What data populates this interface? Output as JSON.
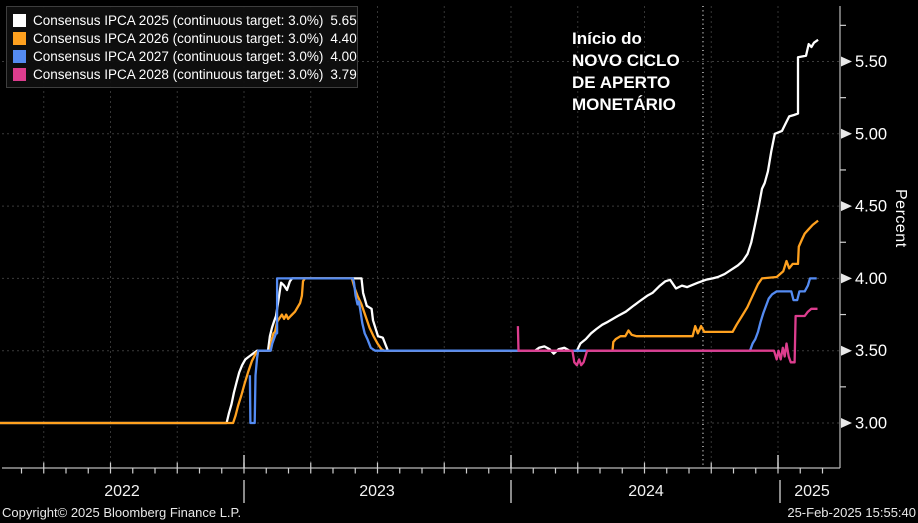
{
  "annotation": {
    "text": "Início do\nNOVO CICLO\nDE APERTO\nMONETÁRIO"
  },
  "footer": {
    "copyright": "Copyright© 2025 Bloomberg Finance L.P.",
    "timestamp": "25-Feb-2025 15:55:40"
  },
  "chart_data": {
    "type": "line",
    "title": "",
    "xlabel": "",
    "ylabel": "Percent",
    "grid": "dashed, both axes",
    "legend_position": "top-left",
    "x_axis": {
      "year_labels": [
        "2022",
        "2023",
        "2024",
        "2025"
      ],
      "minor_ticks": "monthly",
      "major_ticks": "quarterly"
    },
    "y_axis": {
      "ticks": [
        3.0,
        3.5,
        4.0,
        4.5,
        5.0,
        5.5
      ],
      "minor_step": 0.25,
      "range": [
        2.7,
        5.9
      ],
      "side": "right"
    },
    "event_line": {
      "t": 2024.719,
      "style": "dotted-white-vertical"
    },
    "series": [
      {
        "label": "Consensus IPCA 2025 (continuous target: 3.0%)",
        "value": "5.65",
        "color": "#ffffff",
        "points": [
          [
            2022.086,
            3.0
          ],
          [
            2022.935,
            3.0
          ],
          [
            2022.944,
            3.07
          ],
          [
            2022.953,
            3.13
          ],
          [
            2022.962,
            3.21
          ],
          [
            2022.972,
            3.28
          ],
          [
            2022.982,
            3.35
          ],
          [
            2022.993,
            3.4
          ],
          [
            2023.005,
            3.44
          ],
          [
            2023.019,
            3.46
          ],
          [
            2023.034,
            3.48
          ],
          [
            2023.049,
            3.5
          ],
          [
            2023.09,
            3.5
          ],
          [
            2023.097,
            3.6
          ],
          [
            2023.105,
            3.66
          ],
          [
            2023.112,
            3.7
          ],
          [
            2023.12,
            3.74
          ],
          [
            2023.124,
            3.79
          ],
          [
            2023.139,
            3.97
          ],
          [
            2023.15,
            3.95
          ],
          [
            2023.161,
            3.92
          ],
          [
            2023.172,
            3.98
          ],
          [
            2023.18,
            4.0
          ],
          [
            2023.44,
            4.0
          ],
          [
            2023.446,
            3.9
          ],
          [
            2023.46,
            3.81
          ],
          [
            2023.478,
            3.79
          ],
          [
            2023.483,
            3.71
          ],
          [
            2023.502,
            3.6
          ],
          [
            2023.52,
            3.59
          ],
          [
            2023.539,
            3.5
          ],
          [
            2024.09,
            3.5
          ],
          [
            2024.105,
            3.52
          ],
          [
            2024.125,
            3.53
          ],
          [
            2024.145,
            3.51
          ],
          [
            2024.16,
            3.48
          ],
          [
            2024.178,
            3.51
          ],
          [
            2024.2,
            3.52
          ],
          [
            2024.22,
            3.5
          ],
          [
            2024.247,
            3.5
          ],
          [
            2024.26,
            3.55
          ],
          [
            2024.28,
            3.58
          ],
          [
            2024.3,
            3.62
          ],
          [
            2024.32,
            3.65
          ],
          [
            2024.342,
            3.68
          ],
          [
            2024.363,
            3.7
          ],
          [
            2024.4,
            3.74
          ],
          [
            2024.43,
            3.77
          ],
          [
            2024.458,
            3.81
          ],
          [
            2024.48,
            3.84
          ],
          [
            2024.51,
            3.88
          ],
          [
            2024.53,
            3.9
          ],
          [
            2024.558,
            3.95
          ],
          [
            2024.578,
            3.98
          ],
          [
            2024.596,
            3.99
          ],
          [
            2024.618,
            3.93
          ],
          [
            2024.64,
            3.95
          ],
          [
            2024.66,
            3.94
          ],
          [
            2024.7,
            3.97
          ],
          [
            2024.73,
            3.99
          ],
          [
            2024.755,
            4.0
          ],
          [
            2024.775,
            4.01
          ],
          [
            2024.8,
            4.03
          ],
          [
            2024.825,
            4.06
          ],
          [
            2024.85,
            4.09
          ],
          [
            2024.868,
            4.12
          ],
          [
            2024.886,
            4.17
          ],
          [
            2024.9,
            4.25
          ],
          [
            2024.915,
            4.38
          ],
          [
            2024.928,
            4.5
          ],
          [
            2024.94,
            4.62
          ],
          [
            2024.95,
            4.66
          ],
          [
            2024.962,
            4.74
          ],
          [
            2024.975,
            4.88
          ],
          [
            2024.988,
            5.0
          ],
          [
            2025.015,
            5.02
          ],
          [
            2025.028,
            5.07
          ],
          [
            2025.042,
            5.12
          ],
          [
            2025.06,
            5.13
          ],
          [
            2025.075,
            5.14
          ],
          [
            2025.075,
            5.53
          ],
          [
            2025.105,
            5.54
          ],
          [
            2025.115,
            5.62
          ],
          [
            2025.125,
            5.6
          ],
          [
            2025.135,
            5.63
          ],
          [
            2025.15,
            5.65
          ]
        ]
      },
      {
        "label": "Consensus IPCA 2026 (continuous target: 3.0%)",
        "value": "4.40",
        "color": "#ffa11f",
        "points": [
          [
            2022.086,
            3.0
          ],
          [
            2022.959,
            3.0
          ],
          [
            2022.968,
            3.05
          ],
          [
            2022.978,
            3.12
          ],
          [
            2022.99,
            3.19
          ],
          [
            2023.002,
            3.27
          ],
          [
            2023.015,
            3.35
          ],
          [
            2023.03,
            3.43
          ],
          [
            2023.044,
            3.48
          ],
          [
            2023.055,
            3.5
          ],
          [
            2023.097,
            3.5
          ],
          [
            2023.103,
            3.57
          ],
          [
            2023.11,
            3.62
          ],
          [
            2023.116,
            3.63
          ],
          [
            2023.124,
            3.7
          ],
          [
            2023.142,
            3.75
          ],
          [
            2023.15,
            3.72
          ],
          [
            2023.158,
            3.75
          ],
          [
            2023.165,
            3.72
          ],
          [
            2023.175,
            3.74
          ],
          [
            2023.191,
            3.77
          ],
          [
            2023.21,
            3.83
          ],
          [
            2023.217,
            3.88
          ],
          [
            2023.221,
            3.98
          ],
          [
            2023.228,
            4.0
          ],
          [
            2023.404,
            4.0
          ],
          [
            2023.415,
            3.93
          ],
          [
            2023.425,
            3.88
          ],
          [
            2023.44,
            3.82
          ],
          [
            2023.455,
            3.74
          ],
          [
            2023.47,
            3.66
          ],
          [
            2023.485,
            3.6
          ],
          [
            2023.5,
            3.55
          ],
          [
            2023.515,
            3.51
          ],
          [
            2023.525,
            3.5
          ],
          [
            2024.38,
            3.5
          ],
          [
            2024.383,
            3.56
          ],
          [
            2024.392,
            3.58
          ],
          [
            2024.41,
            3.6
          ],
          [
            2024.428,
            3.6
          ],
          [
            2024.44,
            3.64
          ],
          [
            2024.452,
            3.61
          ],
          [
            2024.47,
            3.6
          ],
          [
            2024.68,
            3.6
          ],
          [
            2024.69,
            3.67
          ],
          [
            2024.7,
            3.62
          ],
          [
            2024.712,
            3.67
          ],
          [
            2024.724,
            3.63
          ],
          [
            2024.83,
            3.63
          ],
          [
            2024.845,
            3.68
          ],
          [
            2024.865,
            3.74
          ],
          [
            2024.885,
            3.8
          ],
          [
            2024.905,
            3.88
          ],
          [
            2024.925,
            3.96
          ],
          [
            2024.94,
            4.0
          ],
          [
            2024.995,
            4.01
          ],
          [
            2025.02,
            4.05
          ],
          [
            2025.032,
            4.12
          ],
          [
            2025.042,
            4.07
          ],
          [
            2025.055,
            4.1
          ],
          [
            2025.075,
            4.1
          ],
          [
            2025.078,
            4.22
          ],
          [
            2025.09,
            4.27
          ],
          [
            2025.1,
            4.31
          ],
          [
            2025.115,
            4.34
          ],
          [
            2025.13,
            4.37
          ],
          [
            2025.15,
            4.4
          ]
        ]
      },
      {
        "label": "Consensus IPCA 2027 (continuous target: 3.0%)",
        "value": "4.00",
        "color": "#548bf2",
        "points": [
          [
            2023.022,
            3.33
          ],
          [
            2023.024,
            3.0
          ],
          [
            2023.04,
            3.0
          ],
          [
            2023.043,
            3.33
          ],
          [
            2023.049,
            3.45
          ],
          [
            2023.053,
            3.5
          ],
          [
            2023.1,
            3.5
          ],
          [
            2023.106,
            3.55
          ],
          [
            2023.112,
            3.58
          ],
          [
            2023.12,
            3.62
          ],
          [
            2023.124,
            3.62
          ],
          [
            2023.124,
            4.0
          ],
          [
            2023.408,
            4.0
          ],
          [
            2023.412,
            3.97
          ],
          [
            2023.418,
            3.88
          ],
          [
            2023.425,
            3.82
          ],
          [
            2023.43,
            3.84
          ],
          [
            2023.435,
            3.79
          ],
          [
            2023.443,
            3.69
          ],
          [
            2023.452,
            3.62
          ],
          [
            2023.462,
            3.58
          ],
          [
            2023.475,
            3.52
          ],
          [
            2023.491,
            3.5
          ],
          [
            2024.895,
            3.5
          ],
          [
            2024.905,
            3.55
          ],
          [
            2024.915,
            3.58
          ],
          [
            2024.925,
            3.63
          ],
          [
            2024.935,
            3.7
          ],
          [
            2024.945,
            3.76
          ],
          [
            2024.955,
            3.81
          ],
          [
            2024.965,
            3.86
          ],
          [
            2024.978,
            3.89
          ],
          [
            2024.995,
            3.91
          ],
          [
            2025.05,
            3.91
          ],
          [
            2025.058,
            3.85
          ],
          [
            2025.072,
            3.85
          ],
          [
            2025.08,
            3.91
          ],
          [
            2025.1,
            3.91
          ],
          [
            2025.112,
            3.95
          ],
          [
            2025.12,
            4.0
          ],
          [
            2025.145,
            4.0
          ]
        ]
      },
      {
        "label": "Consensus IPCA 2028 (continuous target: 3.0%)",
        "value": "3.79",
        "color": "#dd3d8e",
        "points": [
          [
            2024.026,
            3.67
          ],
          [
            2024.028,
            3.5
          ],
          [
            2024.23,
            3.5
          ],
          [
            2024.237,
            3.42
          ],
          [
            2024.247,
            3.4
          ],
          [
            2024.255,
            3.44
          ],
          [
            2024.263,
            3.4
          ],
          [
            2024.272,
            3.42
          ],
          [
            2024.285,
            3.5
          ],
          [
            2024.985,
            3.5
          ],
          [
            2024.995,
            3.44
          ],
          [
            2025.002,
            3.5
          ],
          [
            2025.01,
            3.44
          ],
          [
            2025.018,
            3.52
          ],
          [
            2025.025,
            3.46
          ],
          [
            2025.032,
            3.55
          ],
          [
            2025.04,
            3.46
          ],
          [
            2025.048,
            3.42
          ],
          [
            2025.062,
            3.42
          ],
          [
            2025.066,
            3.74
          ],
          [
            2025.1,
            3.74
          ],
          [
            2025.112,
            3.77
          ],
          [
            2025.125,
            3.79
          ],
          [
            2025.148,
            3.79
          ]
        ]
      }
    ]
  }
}
